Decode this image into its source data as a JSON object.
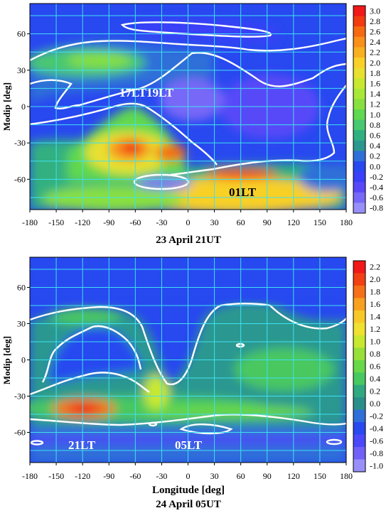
{
  "chart_data": [
    {
      "type": "heatmap",
      "title": "",
      "caption": "23 April 21UT",
      "xlabel": "",
      "ylabel": "Modip [deg]",
      "xlim": [
        -180,
        180
      ],
      "ylim": [
        -85,
        85
      ],
      "xticks": [
        "-180",
        "-150",
        "-120",
        "-90",
        "-60",
        "-30",
        "0",
        "30",
        "60",
        "90",
        "120",
        "150",
        "180"
      ],
      "yticks": [
        "60",
        "30",
        "0",
        "-30",
        "-60"
      ],
      "colorbar": {
        "range": [
          -0.8,
          3.0
        ],
        "ticks": [
          "3.0",
          "2.8",
          "2.6",
          "2.4",
          "2.2",
          "2.0",
          "1.8",
          "1.6",
          "1.4",
          "1.2",
          "1.0",
          "0.8",
          "0.6",
          "0.4",
          "0.2",
          "0.0",
          "-0.2",
          "-0.4",
          "-0.6",
          "-0.8"
        ],
        "colors": [
          "#f01818",
          "#f23a10",
          "#f56a10",
          "#f8901a",
          "#f8b020",
          "#f8d028",
          "#e8e030",
          "#c8e830",
          "#a8e838",
          "#88e040",
          "#60d850",
          "#48c870",
          "#30b080",
          "#2a9890",
          "#2f6fd8",
          "#2848f0",
          "#3a40f8",
          "#5848f8",
          "#7868f8",
          "#9890f8"
        ]
      },
      "annotations": [
        "17LT",
        "19LT",
        "01LT"
      ]
    },
    {
      "type": "heatmap",
      "title": "",
      "caption": "24 April 05UT",
      "xlabel": "Longitude [deg]",
      "ylabel": "Modip [deg]",
      "xlim": [
        -180,
        180
      ],
      "ylim": [
        -85,
        85
      ],
      "xticks": [
        "-180",
        "-150",
        "-120",
        "-90",
        "-60",
        "-30",
        "0",
        "30",
        "60",
        "90",
        "120",
        "150",
        "180"
      ],
      "yticks": [
        "60",
        "30",
        "0",
        "-30",
        "-60"
      ],
      "colorbar": {
        "range": [
          -1.0,
          2.2
        ],
        "ticks": [
          "2.2",
          "2.0",
          "1.8",
          "1.6",
          "1.4",
          "1.2",
          "1.0",
          "0.8",
          "0.6",
          "0.4",
          "0.2",
          "0.0",
          "-0.2",
          "-0.4",
          "-0.6",
          "-0.8",
          "-1.0"
        ],
        "colors": [
          "#f01818",
          "#f24012",
          "#f57018",
          "#f8a020",
          "#f8c828",
          "#f0e030",
          "#c8e830",
          "#98e038",
          "#68d848",
          "#48c860",
          "#30a880",
          "#2a8f8a",
          "#2f6fd8",
          "#2848f0",
          "#4a48f8",
          "#7060f8",
          "#9890f8"
        ]
      },
      "annotations": [
        "21LT",
        "05LT"
      ]
    }
  ]
}
